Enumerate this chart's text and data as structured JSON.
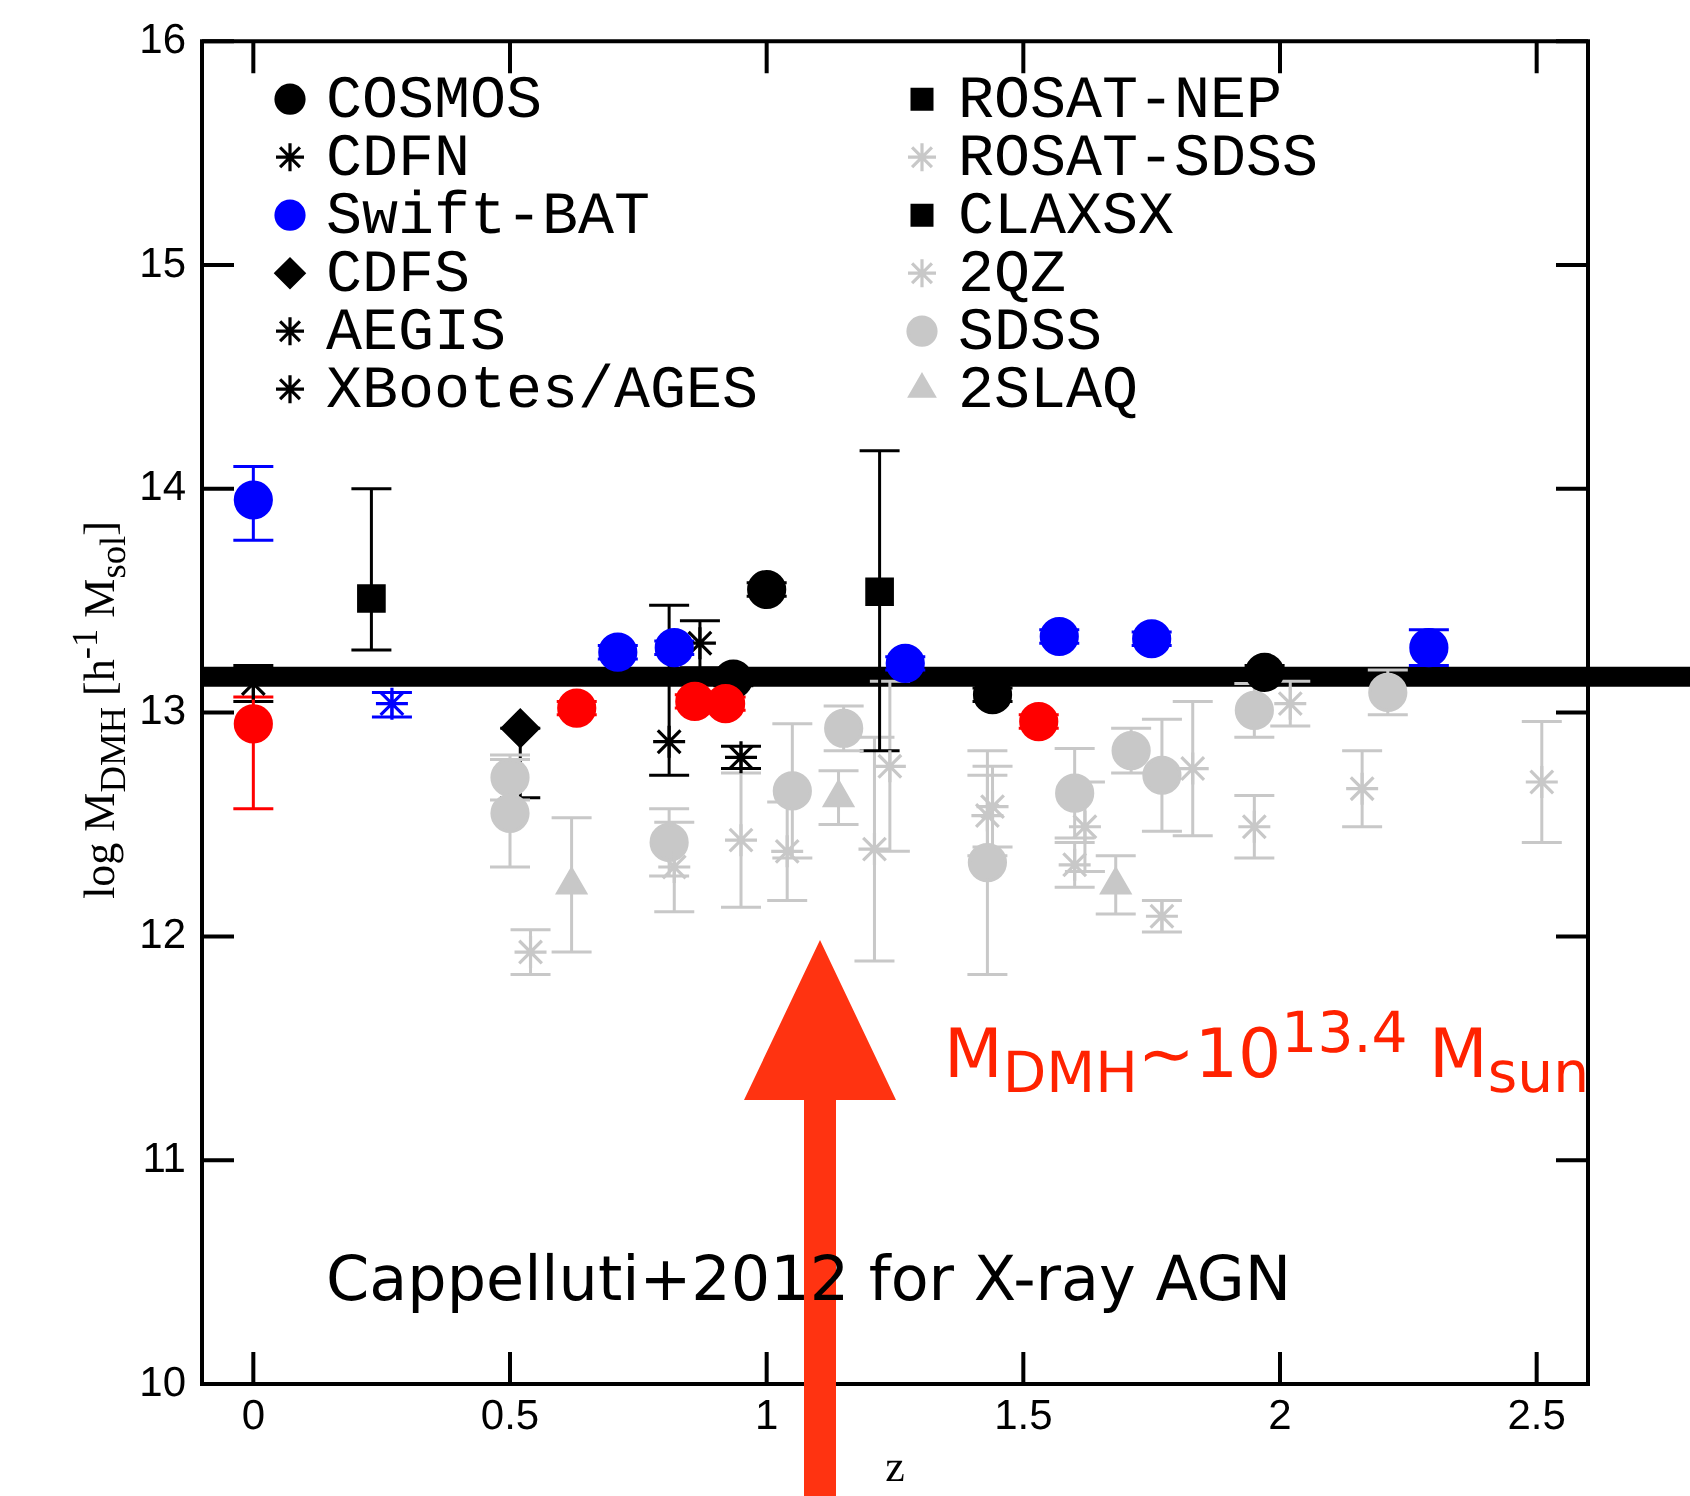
{
  "chart_data": {
    "type": "scatter",
    "xlabel": "z",
    "ylabel": "log M$_{DMH}$ [h$^{-1}$ M$_{sol}$]",
    "xlim": [
      -0.1,
      2.6
    ],
    "ylim": [
      10,
      16
    ],
    "xticks": [
      0,
      0.5,
      1,
      1.5,
      2,
      2.5
    ],
    "yticks": [
      10,
      11,
      12,
      13,
      14,
      15,
      16
    ],
    "grid": false,
    "legend": "top left",
    "ref_lines": [
      {
        "axis": "y",
        "value": 13.16,
        "color": "#000000"
      }
    ],
    "annotations": [
      "M$_{DMH}$~10$^{13.4}$ M$_{sun}$",
      "Cappelluti+2012 for X-ray AGN"
    ],
    "series": [
      {
        "name": "COSMOS",
        "color": "#000000",
        "marker": "circle",
        "x": [
          1.0,
          0.935,
          1.44,
          1.97,
          0.71,
          0.82,
          1.27,
          1.57,
          1.75,
          2.29,
          0.63,
          0.86,
          0.92,
          1.53
        ],
        "values": [
          13.55,
          13.15,
          13.08,
          13.18,
          13.27,
          13.29,
          13.22,
          13.34,
          13.33,
          13.29,
          13.02,
          13.05,
          13.04,
          12.96
        ],
        "errors": [
          0.03,
          0.03,
          0.03,
          0.03,
          0.03,
          0.03,
          0.03,
          0.03,
          0.03,
          0.08,
          0.03,
          0.03,
          0.03,
          0.03
        ],
        "colors": [
          "#000000",
          "#000000",
          "#000000",
          "#000000",
          "#0000ff",
          "#0000ff",
          "#0000ff",
          "#0000ff",
          "#0000ff",
          "#0000ff",
          "#ff0000",
          "#ff0000",
          "#ff0000",
          "#ff0000"
        ]
      },
      {
        "name": "CDFN",
        "color": "#000000",
        "marker": "cross",
        "x": [
          0.0,
          0.81,
          0.27
        ],
        "values": [
          13.13,
          12.87,
          13.04
        ],
        "errors": [
          [
            13.05,
            13.21
          ],
          [
            12.72,
            13.48
          ],
          [
            12.98,
            13.09
          ]
        ],
        "colors": [
          "#000000",
          "#000000",
          "#0000ff"
        ]
      },
      {
        "name": "Swift-BAT",
        "color": "#0000ff",
        "marker": "circle",
        "x": [
          0,
          0
        ],
        "values": [
          13.95,
          12.95
        ],
        "errors": [
          [
            13.77,
            14.1
          ],
          [
            12.57,
            13.07
          ]
        ],
        "colors": [
          "#0000ff",
          "#ff0000"
        ]
      },
      {
        "name": "CDFS",
        "color": "#000000",
        "marker": "diamond",
        "x": [
          0.52
        ],
        "values": [
          12.93
        ],
        "errors": [
          [
            12.62,
            12.93
          ]
        ]
      },
      {
        "name": "AEGIS",
        "color": "#000000",
        "marker": "cross",
        "x": [
          0.87
        ],
        "values": [
          13.31
        ],
        "errors": [
          [
            13.2,
            13.41
          ]
        ]
      },
      {
        "name": "XBootes/AGES",
        "color": "#000000",
        "marker": "cross",
        "x": [
          0.95
        ],
        "values": [
          12.8
        ],
        "errors": [
          0.05
        ]
      },
      {
        "name": "ROSAT-NEP",
        "color": "#000000",
        "marker": "square",
        "x": [
          0.23
        ],
        "values": [
          13.51
        ],
        "errors": [
          [
            13.28,
            14.0
          ]
        ]
      },
      {
        "name": "ROSAT-SDSS",
        "color": "#c8c8c8",
        "marker": "cross",
        "x": [
          0.54,
          0.82,
          0.95,
          1.04,
          1.21,
          1.24
        ],
        "values": [
          11.93,
          12.31,
          12.43,
          12.38,
          12.39,
          12.76
        ],
        "errors": [
          0.1,
          0.2,
          0.3,
          0.22,
          0.5,
          0.38
        ],
        "colors": [
          "#c8c8c8",
          "#c8c8c8",
          "#c8c8c8",
          "#c8c8c8",
          "#c8c8c8",
          "#c8c8c8"
        ]
      },
      {
        "name": "CLAXSX",
        "color": "#000000",
        "marker": "square",
        "x": [
          1.22
        ],
        "values": [
          13.54
        ],
        "errors": [
          [
            12.83,
            14.17
          ]
        ]
      },
      {
        "name": "2QZ",
        "color": "#c8c8c8",
        "marker": "cross",
        "x": [
          1.43,
          1.44,
          1.6,
          1.62,
          1.77,
          1.83,
          1.95,
          2.02,
          2.16,
          2.51
        ],
        "values": [
          12.54,
          12.58,
          12.32,
          12.49,
          12.09,
          12.75,
          12.49,
          13.04,
          12.66,
          12.69
        ],
        "errors": [
          0.18,
          0.18,
          0.1,
          0.2,
          0.07,
          0.3,
          0.14,
          0.1,
          0.17,
          0.27
        ],
        "colors": [
          "#c8c8c8",
          "#c8c8c8",
          "#c8c8c8",
          "#c8c8c8",
          "#c8c8c8",
          "#c8c8c8",
          "#c8c8c8",
          "#c8c8c8",
          "#c8c8c8",
          "#c8c8c8"
        ]
      },
      {
        "name": "SDSS",
        "color": "#c8c8c8",
        "marker": "circle",
        "x": [
          0.5,
          0.5,
          0.81,
          1.05,
          1.15,
          1.43,
          1.6,
          1.71,
          1.77,
          1.95,
          2.21
        ],
        "values": [
          12.71,
          12.55,
          12.42,
          12.65,
          12.93,
          12.33,
          12.64,
          12.83,
          12.72,
          13.01,
          13.09
        ],
        "errors": [
          0.1,
          0.24,
          0.15,
          0.3,
          0.1,
          0.5,
          0.2,
          0.1,
          0.25,
          0.12,
          0.1
        ],
        "colors": [
          "#c8c8c8",
          "#c8c8c8",
          "#c8c8c8",
          "#c8c8c8",
          "#c8c8c8",
          "#c8c8c8",
          "#c8c8c8",
          "#c8c8c8",
          "#c8c8c8",
          "#c8c8c8",
          "#c8c8c8"
        ]
      },
      {
        "name": "2SLAQ",
        "color": "#c8c8c8",
        "marker": "triangle",
        "x": [
          0.62,
          1.14,
          1.68
        ],
        "values": [
          12.23,
          12.62,
          12.23
        ],
        "errors": [
          0.3,
          0.12,
          0.13
        ],
        "colors": [
          "#c8c8c8",
          "#c8c8c8",
          "#c8c8c8"
        ]
      }
    ]
  }
}
